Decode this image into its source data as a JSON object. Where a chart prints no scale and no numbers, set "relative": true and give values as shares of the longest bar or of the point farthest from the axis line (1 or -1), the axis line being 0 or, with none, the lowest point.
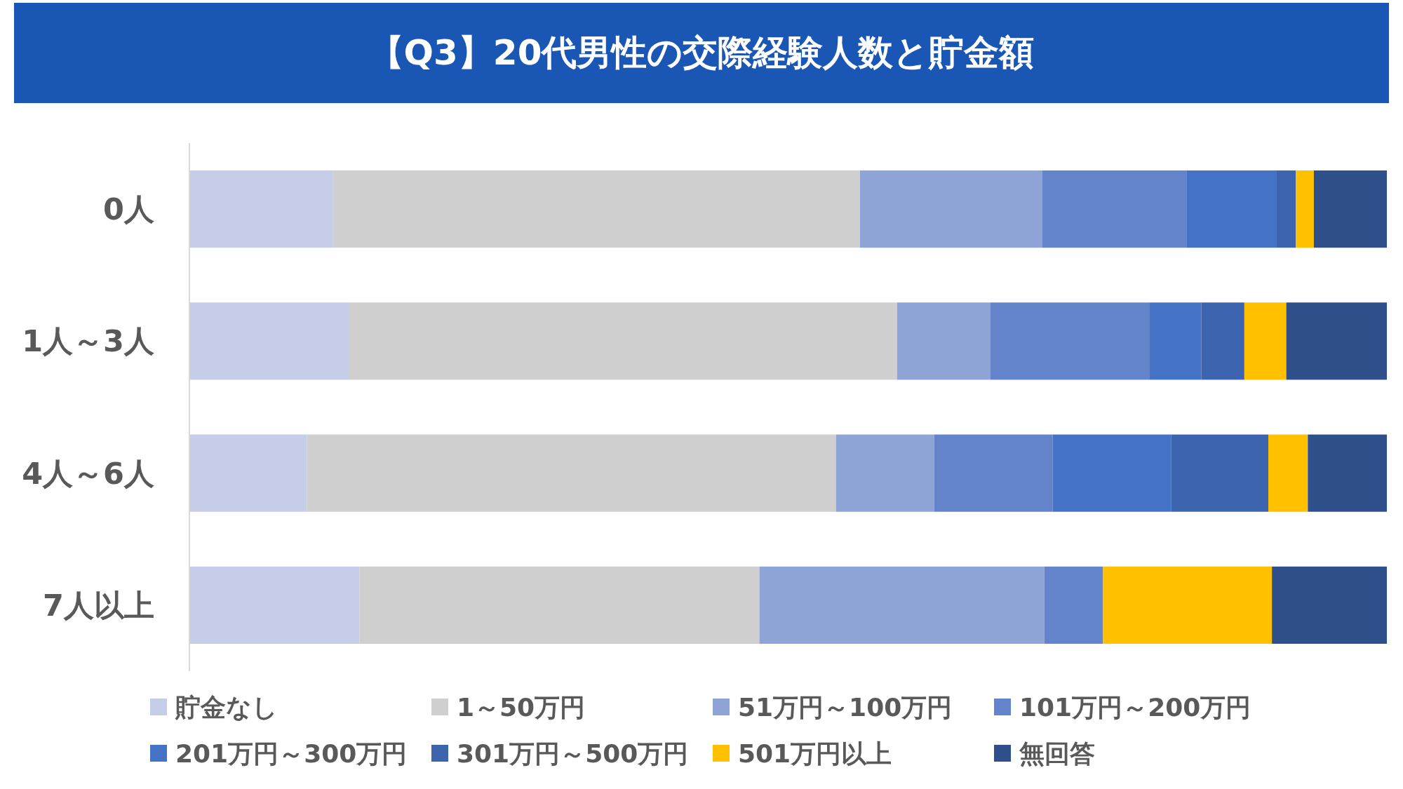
{
  "chart_data": {
    "type": "bar",
    "title": "【Q3】20代男性の交際経験人数と貯金額",
    "orientation": "horizontal",
    "stacked": true,
    "relative": true,
    "legend": "bottom",
    "categories": [
      "0人",
      "1人～3人",
      "4人～6人",
      "7人以上"
    ],
    "series": [
      {
        "name": "貯金なし",
        "color": "#c5cde8",
        "values": [
          0.12,
          0.133,
          0.098,
          0.142
        ]
      },
      {
        "name": "1～50万円",
        "color": "#d0cfd0",
        "values": [
          0.44,
          0.458,
          0.442,
          0.334
        ]
      },
      {
        "name": "51万円～100万円",
        "color": "#8fa4d6",
        "values": [
          0.152,
          0.078,
          0.082,
          0.238
        ]
      },
      {
        "name": "101万円～200万円",
        "color": "#6384cb",
        "values": [
          0.121,
          0.133,
          0.099,
          0.049
        ]
      },
      {
        "name": "201万円～300万円",
        "color": "#4472c4",
        "values": [
          0.075,
          0.043,
          0.099,
          0
        ]
      },
      {
        "name": "301万円～500万円",
        "color": "#3d64ae",
        "values": [
          0.016,
          0.036,
          0.081,
          0
        ]
      },
      {
        "name": "501万円以上",
        "color": "#ffc000",
        "values": [
          0.015,
          0.035,
          0.033,
          0.141
        ]
      },
      {
        "name": "無回答",
        "color": "#2e4f8a",
        "values": [
          0.061,
          0.084,
          0.066,
          0.096
        ]
      }
    ]
  }
}
